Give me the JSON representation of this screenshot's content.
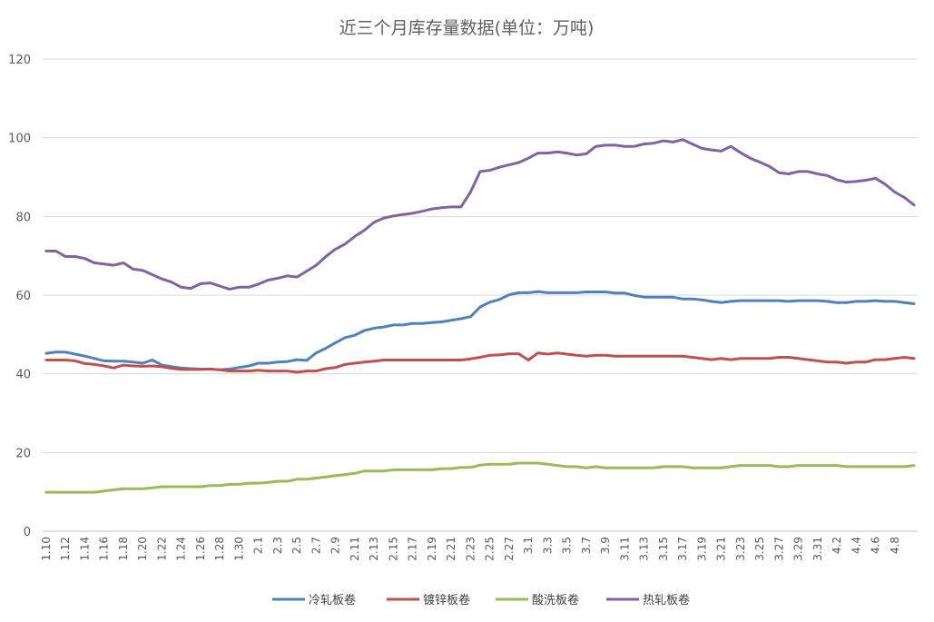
{
  "chart_data": {
    "type": "line",
    "title": "近三个月库存量数据(单位：万吨)",
    "xlabel": "",
    "ylabel": "",
    "ylim": [
      0,
      120
    ],
    "yticks": [
      0,
      20,
      40,
      60,
      80,
      100,
      120
    ],
    "grid": "horizontal",
    "legend_position": "bottom",
    "x": [
      "1.10",
      "1.11",
      "1.12",
      "1.13",
      "1.14",
      "1.15",
      "1.16",
      "1.17",
      "1.18",
      "1.19",
      "1.20",
      "1.21",
      "1.22",
      "1.23",
      "1.24",
      "1.25",
      "1.26",
      "1.27",
      "1.28",
      "1.29",
      "1.30",
      "1.31",
      "2.1",
      "2.2",
      "2.3",
      "2.4",
      "2.5",
      "2.6",
      "2.7",
      "2.8",
      "2.9",
      "2.10",
      "2.11",
      "2.12",
      "2.13",
      "2.14",
      "2.15",
      "2.16",
      "2.17",
      "2.18",
      "2.19",
      "2.20",
      "2.21",
      "2.22",
      "2.23",
      "2.24",
      "2.25",
      "2.26",
      "2.27",
      "2.28",
      "3.1",
      "3.2",
      "3.3",
      "3.4",
      "3.5",
      "3.6",
      "3.7",
      "3.8",
      "3.9",
      "3.10",
      "3.11",
      "3.12",
      "3.13",
      "3.14",
      "3.15",
      "3.16",
      "3.17",
      "3.18",
      "3.19",
      "3.20",
      "3.21",
      "3.22",
      "3.23",
      "3.24",
      "3.25",
      "3.26",
      "3.27",
      "3.28",
      "3.29",
      "3.30",
      "3.31",
      "4.1",
      "4.2",
      "4.3",
      "4.4",
      "4.5",
      "4.6",
      "4.7",
      "4.8",
      "4.9",
      "4.10"
    ],
    "x_tick_labels": [
      "1.10",
      "1.12",
      "1.14",
      "1.16",
      "1.18",
      "1.20",
      "1.22",
      "1.24",
      "1.26",
      "1.28",
      "1.30",
      "2.1",
      "2.3",
      "2.5",
      "2.7",
      "2.9",
      "2.11",
      "2.13",
      "2.15",
      "2.17",
      "2.19",
      "2.21",
      "2.23",
      "2.25",
      "2.27",
      "3.1",
      "3.3",
      "3.5",
      "3.7",
      "3.9",
      "3.11",
      "3.13",
      "3.15",
      "3.17",
      "3.19",
      "3.21",
      "3.23",
      "3.25",
      "3.27",
      "3.29",
      "3.31",
      "4.2",
      "4.4",
      "4.6",
      "4.8"
    ],
    "series": [
      {
        "name": "冷轧板卷",
        "color": "#4f81bd",
        "values": [
          45.2,
          45.5,
          45.5,
          45,
          44.5,
          43.9,
          43.3,
          43.2,
          43.2,
          43,
          42.7,
          43.5,
          42.2,
          41.8,
          41.5,
          41.3,
          41.2,
          41.2,
          41,
          41.2,
          41.6,
          42,
          42.7,
          42.7,
          43,
          43.1,
          43.6,
          43.4,
          45.3,
          46.5,
          47.9,
          49.2,
          49.8,
          51,
          51.6,
          51.9,
          52.4,
          52.4,
          52.8,
          52.8,
          53,
          53.2,
          53.6,
          54,
          54.5,
          57,
          58.2,
          58.9,
          60.1,
          60.6,
          60.6,
          60.9,
          60.6,
          60.6,
          60.6,
          60.6,
          60.8,
          60.8,
          60.8,
          60.5,
          60.5,
          59.9,
          59.5,
          59.5,
          59.5,
          59.5,
          59,
          59,
          58.8,
          58.4,
          58.1,
          58.4,
          58.6,
          58.6,
          58.6,
          58.6,
          58.6,
          58.4,
          58.6,
          58.6,
          58.6,
          58.4,
          58.1,
          58.1,
          58.4,
          58.4,
          58.6,
          58.4,
          58.4,
          58.1,
          57.8
        ]
      },
      {
        "name": "镀锌板卷",
        "color": "#c0504d",
        "values": [
          43.5,
          43.5,
          43.5,
          43.3,
          42.6,
          42.4,
          42,
          41.5,
          42.2,
          42,
          41.9,
          42,
          41.8,
          41.4,
          41.1,
          41.1,
          41.1,
          41.2,
          41,
          40.7,
          40.7,
          40.7,
          40.9,
          40.7,
          40.7,
          40.7,
          40.4,
          40.7,
          40.7,
          41.3,
          41.6,
          42.4,
          42.7,
          43,
          43.2,
          43.5,
          43.5,
          43.5,
          43.5,
          43.5,
          43.5,
          43.5,
          43.5,
          43.5,
          43.8,
          44.2,
          44.7,
          44.8,
          45.1,
          45.1,
          43.5,
          45.3,
          45,
          45.3,
          45,
          44.7,
          44.5,
          44.7,
          44.7,
          44.5,
          44.5,
          44.5,
          44.5,
          44.5,
          44.5,
          44.5,
          44.5,
          44.2,
          43.9,
          43.6,
          43.9,
          43.6,
          43.9,
          43.9,
          43.9,
          43.9,
          44.2,
          44.2,
          43.9,
          43.6,
          43.3,
          43,
          43,
          42.7,
          43,
          43,
          43.6,
          43.6,
          43.9,
          44.2,
          43.9
        ]
      },
      {
        "name": "酸洗板卷",
        "color": "#9bbb59",
        "values": [
          9.9,
          9.9,
          9.9,
          9.9,
          9.9,
          9.9,
          10.2,
          10.5,
          10.8,
          10.8,
          10.8,
          11,
          11.3,
          11.3,
          11.3,
          11.3,
          11.3,
          11.6,
          11.6,
          11.9,
          11.9,
          12.2,
          12.2,
          12.4,
          12.7,
          12.7,
          13.2,
          13.2,
          13.5,
          13.8,
          14.1,
          14.4,
          14.7,
          15.3,
          15.3,
          15.3,
          15.6,
          15.6,
          15.6,
          15.6,
          15.6,
          15.9,
          15.9,
          16.2,
          16.2,
          16.8,
          17,
          17,
          17,
          17.3,
          17.3,
          17.3,
          17,
          16.7,
          16.4,
          16.4,
          16.1,
          16.4,
          16.1,
          16.1,
          16.1,
          16.1,
          16.1,
          16.1,
          16.4,
          16.4,
          16.4,
          16.1,
          16.1,
          16.1,
          16.1,
          16.4,
          16.7,
          16.7,
          16.7,
          16.7,
          16.4,
          16.4,
          16.7,
          16.7,
          16.7,
          16.7,
          16.7,
          16.4,
          16.4,
          16.4,
          16.4,
          16.4,
          16.4,
          16.4,
          16.7
        ]
      },
      {
        "name": "热轧板卷",
        "color": "#8064a2",
        "values": [
          71.2,
          71.2,
          69.8,
          69.8,
          69.3,
          68.2,
          67.9,
          67.6,
          68.2,
          66.6,
          66.3,
          65.2,
          64.1,
          63.3,
          62,
          61.7,
          62.9,
          63.1,
          62.3,
          61.5,
          62,
          62,
          62.8,
          63.8,
          64.3,
          64.9,
          64.6,
          66.1,
          67.6,
          69.8,
          71.7,
          73,
          74.9,
          76.5,
          78.5,
          79.6,
          80.1,
          80.5,
          80.8,
          81.3,
          81.9,
          82.2,
          82.4,
          82.4,
          86.2,
          91.4,
          91.7,
          92.5,
          93.1,
          93.7,
          94.8,
          96.1,
          96.1,
          96.4,
          96.1,
          95.6,
          95.9,
          97.8,
          98.1,
          98.1,
          97.8,
          97.8,
          98.4,
          98.6,
          99.2,
          98.9,
          99.5,
          98.4,
          97.3,
          96.9,
          96.6,
          97.8,
          96.2,
          94.8,
          93.8,
          92.7,
          91.1,
          90.8,
          91.4,
          91.4,
          90.8,
          90.4,
          89.3,
          88.7,
          88.9,
          89.2,
          89.7,
          88.2,
          86.2,
          84.8,
          82.9
        ]
      }
    ]
  }
}
